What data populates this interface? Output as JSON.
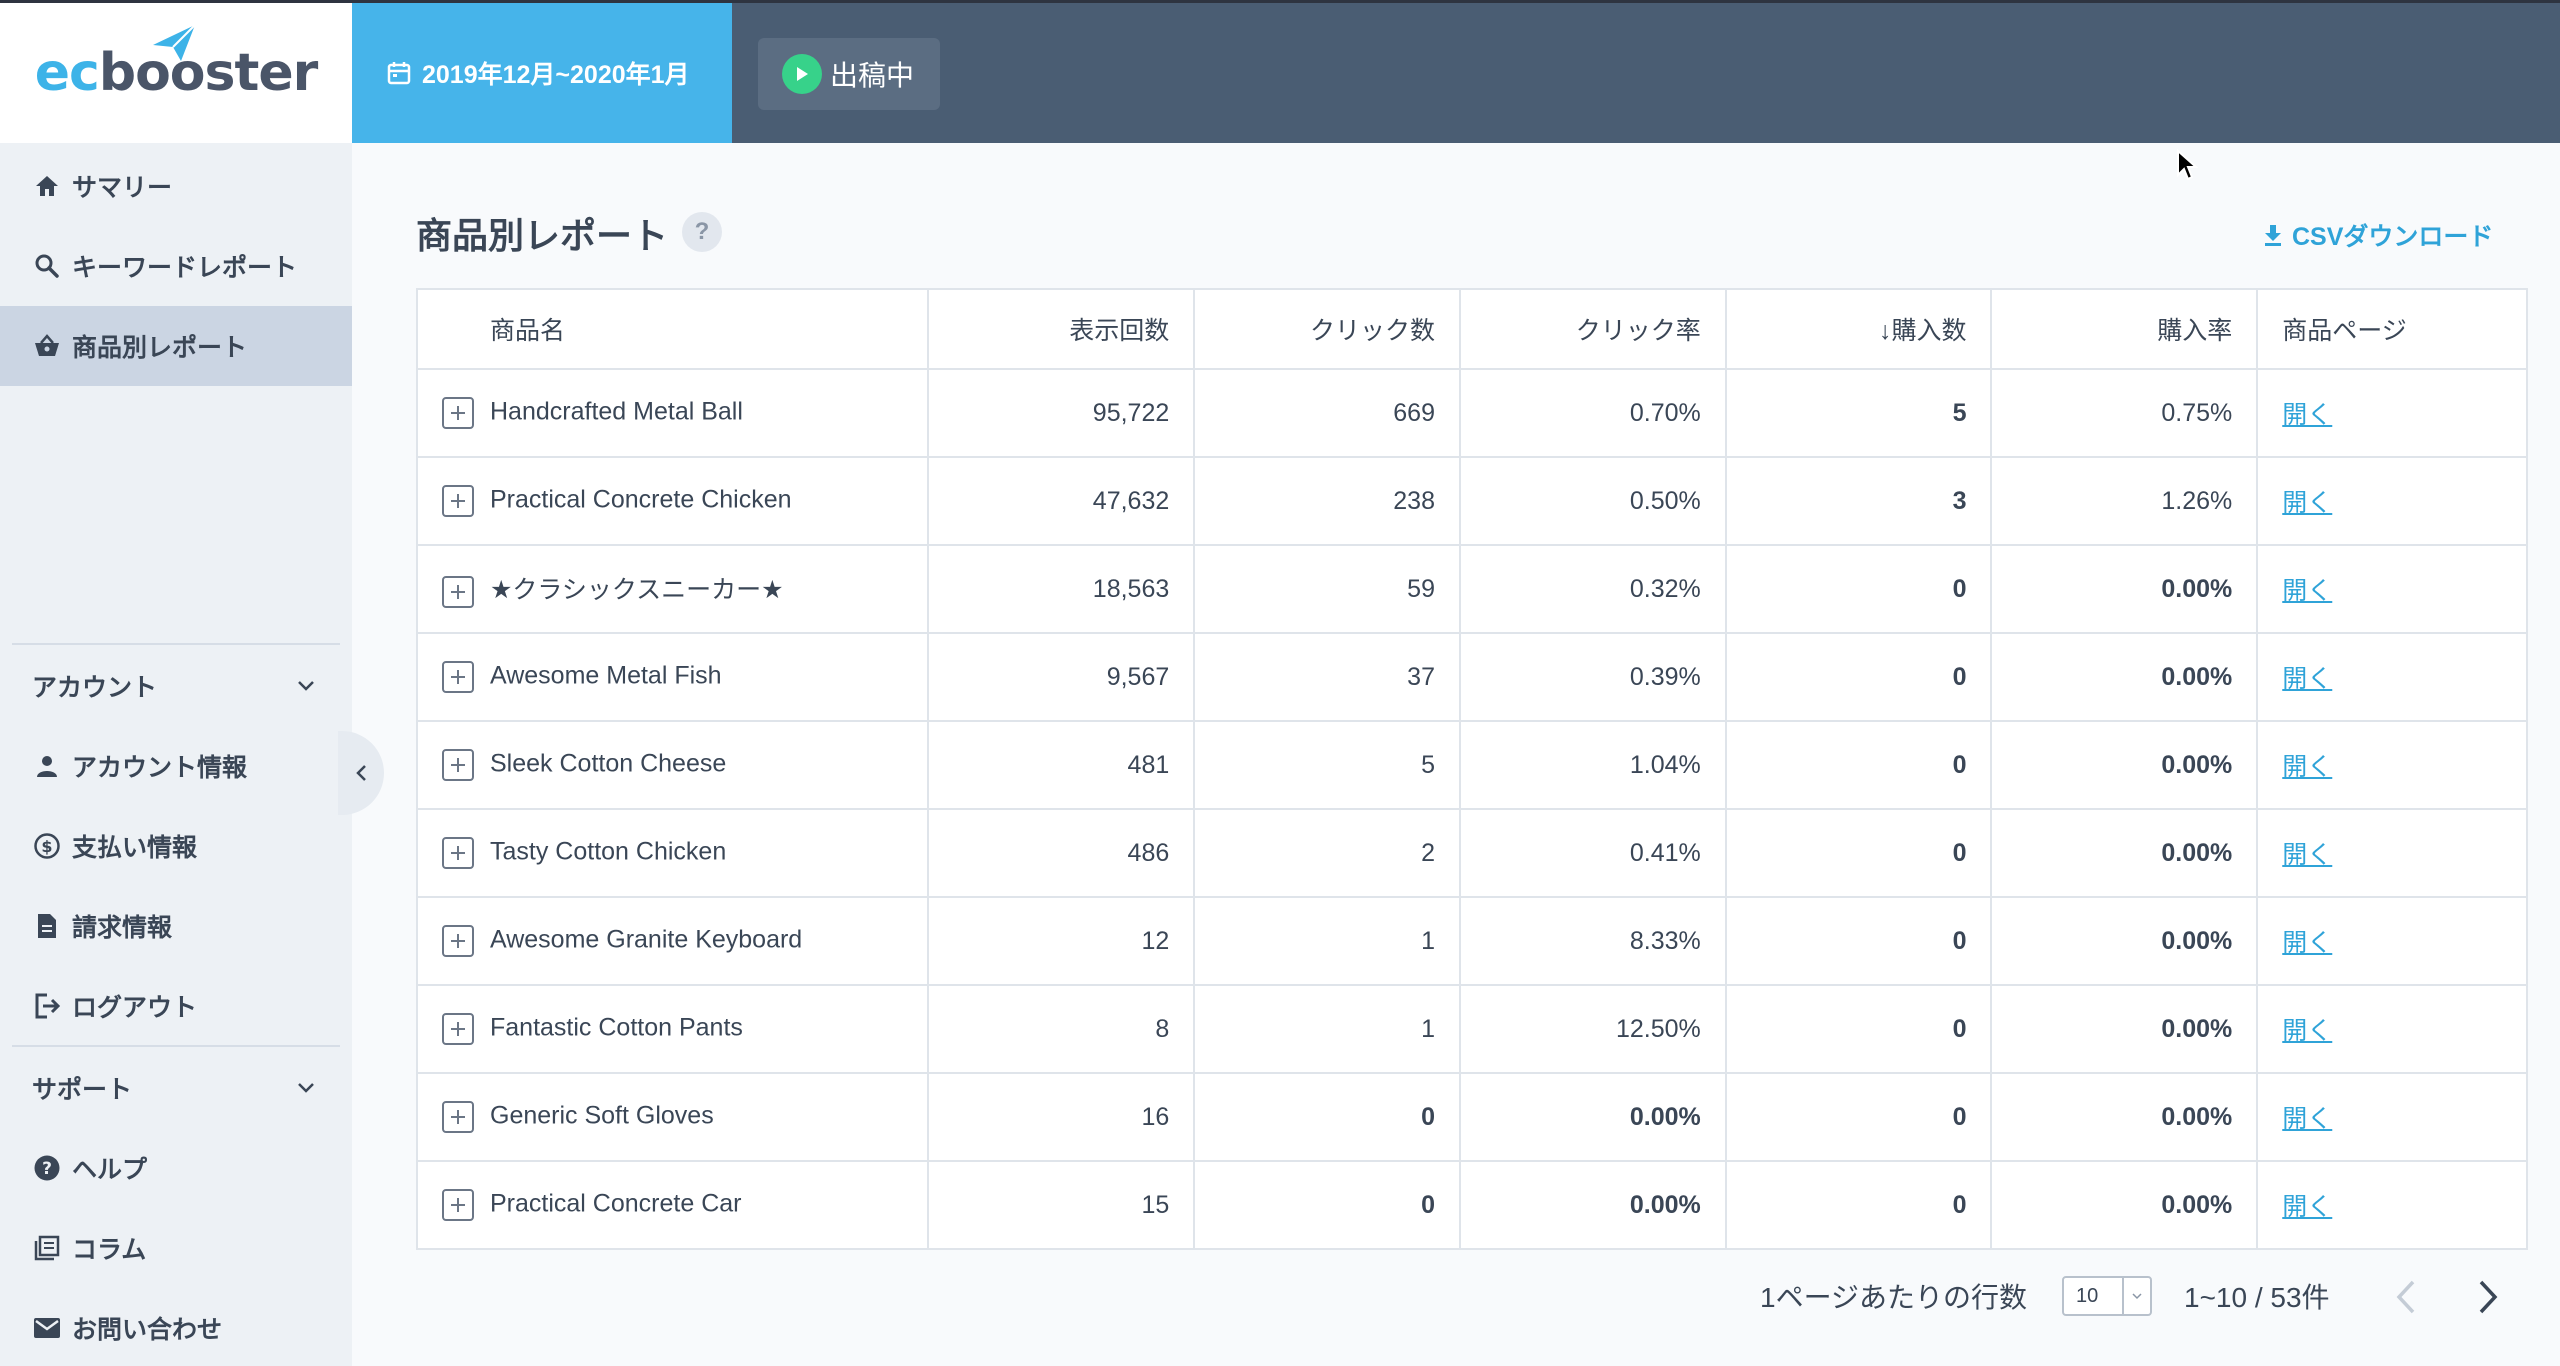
{
  "logo": {
    "ec": "ec",
    "rest": "booster"
  },
  "header": {
    "date_range": "2019年12月~2020年1月",
    "status": "出稿中"
  },
  "sidebar": {
    "items": [
      {
        "label": "サマリー",
        "icon": "home-icon"
      },
      {
        "label": "キーワードレポート",
        "icon": "search-icon"
      },
      {
        "label": "商品別レポート",
        "icon": "basket-icon",
        "active": true
      }
    ],
    "account_section": "アカウント",
    "account_items": [
      {
        "label": "アカウント情報",
        "icon": "person-icon"
      },
      {
        "label": "支払い情報",
        "icon": "dollar-icon"
      },
      {
        "label": "請求情報",
        "icon": "document-icon"
      },
      {
        "label": "ログアウト",
        "icon": "logout-icon"
      }
    ],
    "support_section": "サポート",
    "support_items": [
      {
        "label": "ヘルプ",
        "icon": "help-icon"
      },
      {
        "label": "コラム",
        "icon": "column-icon"
      },
      {
        "label": "お問い合わせ",
        "icon": "mail-icon"
      }
    ]
  },
  "main": {
    "title": "商品別レポート",
    "help": "?",
    "csv_label": "CSVダウンロード"
  },
  "table": {
    "headers": [
      "商品名",
      "表示回数",
      "クリック数",
      "クリック率",
      "購入数",
      "購入率",
      "商品ページ"
    ],
    "sort_arrow": "↓",
    "rows": [
      {
        "name": "Handcrafted Metal Ball",
        "impressions": "95,722",
        "clicks": "669",
        "ctr": "0.70%",
        "purchases": "5",
        "cvr": "0.75%",
        "link": "開く"
      },
      {
        "name": "Practical Concrete Chicken",
        "impressions": "47,632",
        "clicks": "238",
        "ctr": "0.50%",
        "purchases": "3",
        "cvr": "1.26%",
        "link": "開く"
      },
      {
        "name": "★クラシックスニーカー★",
        "impressions": "18,563",
        "clicks": "59",
        "ctr": "0.32%",
        "purchases": "0",
        "cvr": "0.00%",
        "link": "開く"
      },
      {
        "name": "Awesome Metal Fish",
        "impressions": "9,567",
        "clicks": "37",
        "ctr": "0.39%",
        "purchases": "0",
        "cvr": "0.00%",
        "link": "開く"
      },
      {
        "name": "Sleek Cotton Cheese",
        "impressions": "481",
        "clicks": "5",
        "ctr": "1.04%",
        "purchases": "0",
        "cvr": "0.00%",
        "link": "開く"
      },
      {
        "name": "Tasty Cotton Chicken",
        "impressions": "486",
        "clicks": "2",
        "ctr": "0.41%",
        "purchases": "0",
        "cvr": "0.00%",
        "link": "開く"
      },
      {
        "name": "Awesome Granite Keyboard",
        "impressions": "12",
        "clicks": "1",
        "ctr": "8.33%",
        "purchases": "0",
        "cvr": "0.00%",
        "link": "開く"
      },
      {
        "name": "Fantastic Cotton Pants",
        "impressions": "8",
        "clicks": "1",
        "ctr": "12.50%",
        "purchases": "0",
        "cvr": "0.00%",
        "link": "開く"
      },
      {
        "name": "Generic Soft Gloves",
        "impressions": "16",
        "clicks": "0",
        "ctr": "0.00%",
        "purchases": "0",
        "cvr": "0.00%",
        "link": "開く"
      },
      {
        "name": "Practical Concrete Car",
        "impressions": "15",
        "clicks": "0",
        "ctr": "0.00%",
        "purchases": "0",
        "cvr": "0.00%",
        "link": "開く"
      }
    ]
  },
  "footer": {
    "rows_per_page_label": "1ページあたりの行数",
    "rows_per_page_value": "10",
    "range": "1~10 / 53件"
  },
  "colors": {
    "accent": "#46b4ea",
    "header_bg": "#4a5d73",
    "status_green": "#37d28a",
    "link": "#2fa3d8"
  }
}
